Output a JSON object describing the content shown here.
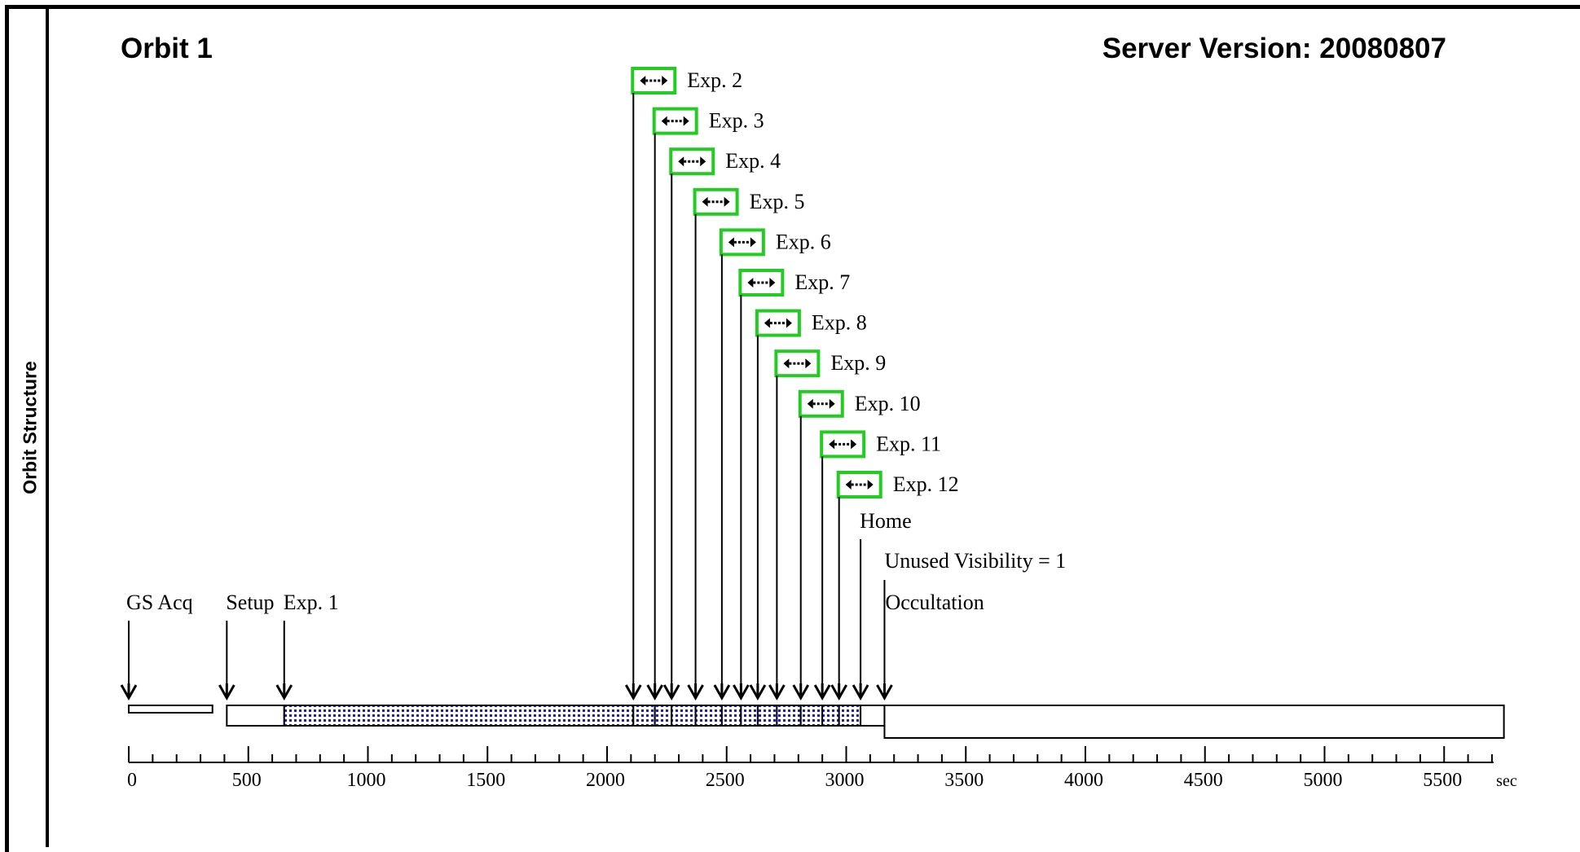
{
  "side_label": "Orbit Structure",
  "title": "Orbit 1",
  "server_version": "Server Version: 20080807",
  "colors": {
    "dotted_fill": "#1a1ad6",
    "exposure_box": "#22cc22",
    "ink": "#000000"
  },
  "icons": [
    "double-arrow-icon"
  ],
  "chart_data": {
    "type": "timeline",
    "x_unit": "sec",
    "xlim": [
      0,
      5700
    ],
    "tick_labels": [
      "0",
      "500",
      "1000",
      "1500",
      "2000",
      "2500",
      "3000",
      "3500",
      "4000",
      "4500",
      "5000",
      "5500"
    ],
    "events": [
      {
        "label": "GS Acq",
        "time": 0
      },
      {
        "label": "Setup",
        "time": 410
      },
      {
        "label": "Exp. 1",
        "time": 650
      },
      {
        "label": "Exp. 2",
        "time": 2110,
        "expandable": true
      },
      {
        "label": "Exp. 3",
        "time": 2200,
        "expandable": true
      },
      {
        "label": "Exp. 4",
        "time": 2270,
        "expandable": true
      },
      {
        "label": "Exp. 5",
        "time": 2370,
        "expandable": true
      },
      {
        "label": "Exp. 6",
        "time": 2480,
        "expandable": true
      },
      {
        "label": "Exp. 7",
        "time": 2560,
        "expandable": true
      },
      {
        "label": "Exp. 8",
        "time": 2630,
        "expandable": true
      },
      {
        "label": "Exp. 9",
        "time": 2710,
        "expandable": true
      },
      {
        "label": "Exp. 10",
        "time": 2810,
        "expandable": true
      },
      {
        "label": "Exp. 11",
        "time": 2900,
        "expandable": true
      },
      {
        "label": "Exp. 12",
        "time": 2970,
        "expandable": true
      },
      {
        "label": "Home",
        "time": 3060
      },
      {
        "label": "Unused Visibility = 1",
        "time": 3160
      },
      {
        "label": "Occultation",
        "time": 3160
      }
    ],
    "segments": [
      {
        "name": "GS Acq",
        "start": 0,
        "end": 350,
        "style": "thin"
      },
      {
        "name": "Setup",
        "start": 410,
        "end": 650,
        "style": "plain"
      },
      {
        "name": "Exp. 1",
        "start": 650,
        "end": 2110,
        "style": "dotted"
      },
      {
        "name": "Exp. 2",
        "start": 2110,
        "end": 2200,
        "style": "dotted"
      },
      {
        "name": "Exp. 3",
        "start": 2200,
        "end": 2270,
        "style": "dotted"
      },
      {
        "name": "Exp. 4",
        "start": 2270,
        "end": 2370,
        "style": "dotted"
      },
      {
        "name": "Exp. 5",
        "start": 2370,
        "end": 2480,
        "style": "dotted"
      },
      {
        "name": "Exp. 6",
        "start": 2480,
        "end": 2560,
        "style": "dotted"
      },
      {
        "name": "Exp. 7",
        "start": 2560,
        "end": 2630,
        "style": "dotted"
      },
      {
        "name": "Exp. 8",
        "start": 2630,
        "end": 2710,
        "style": "dotted"
      },
      {
        "name": "Exp. 9",
        "start": 2710,
        "end": 2810,
        "style": "dotted"
      },
      {
        "name": "Exp. 10",
        "start": 2810,
        "end": 2900,
        "style": "dotted"
      },
      {
        "name": "Exp. 11",
        "start": 2900,
        "end": 2970,
        "style": "dotted"
      },
      {
        "name": "Exp. 12",
        "start": 2970,
        "end": 3060,
        "style": "dotted"
      },
      {
        "name": "Home",
        "start": 3060,
        "end": 3160,
        "style": "plain"
      },
      {
        "name": "Occultation",
        "start": 3160,
        "end": 5750,
        "style": "tall"
      }
    ]
  }
}
